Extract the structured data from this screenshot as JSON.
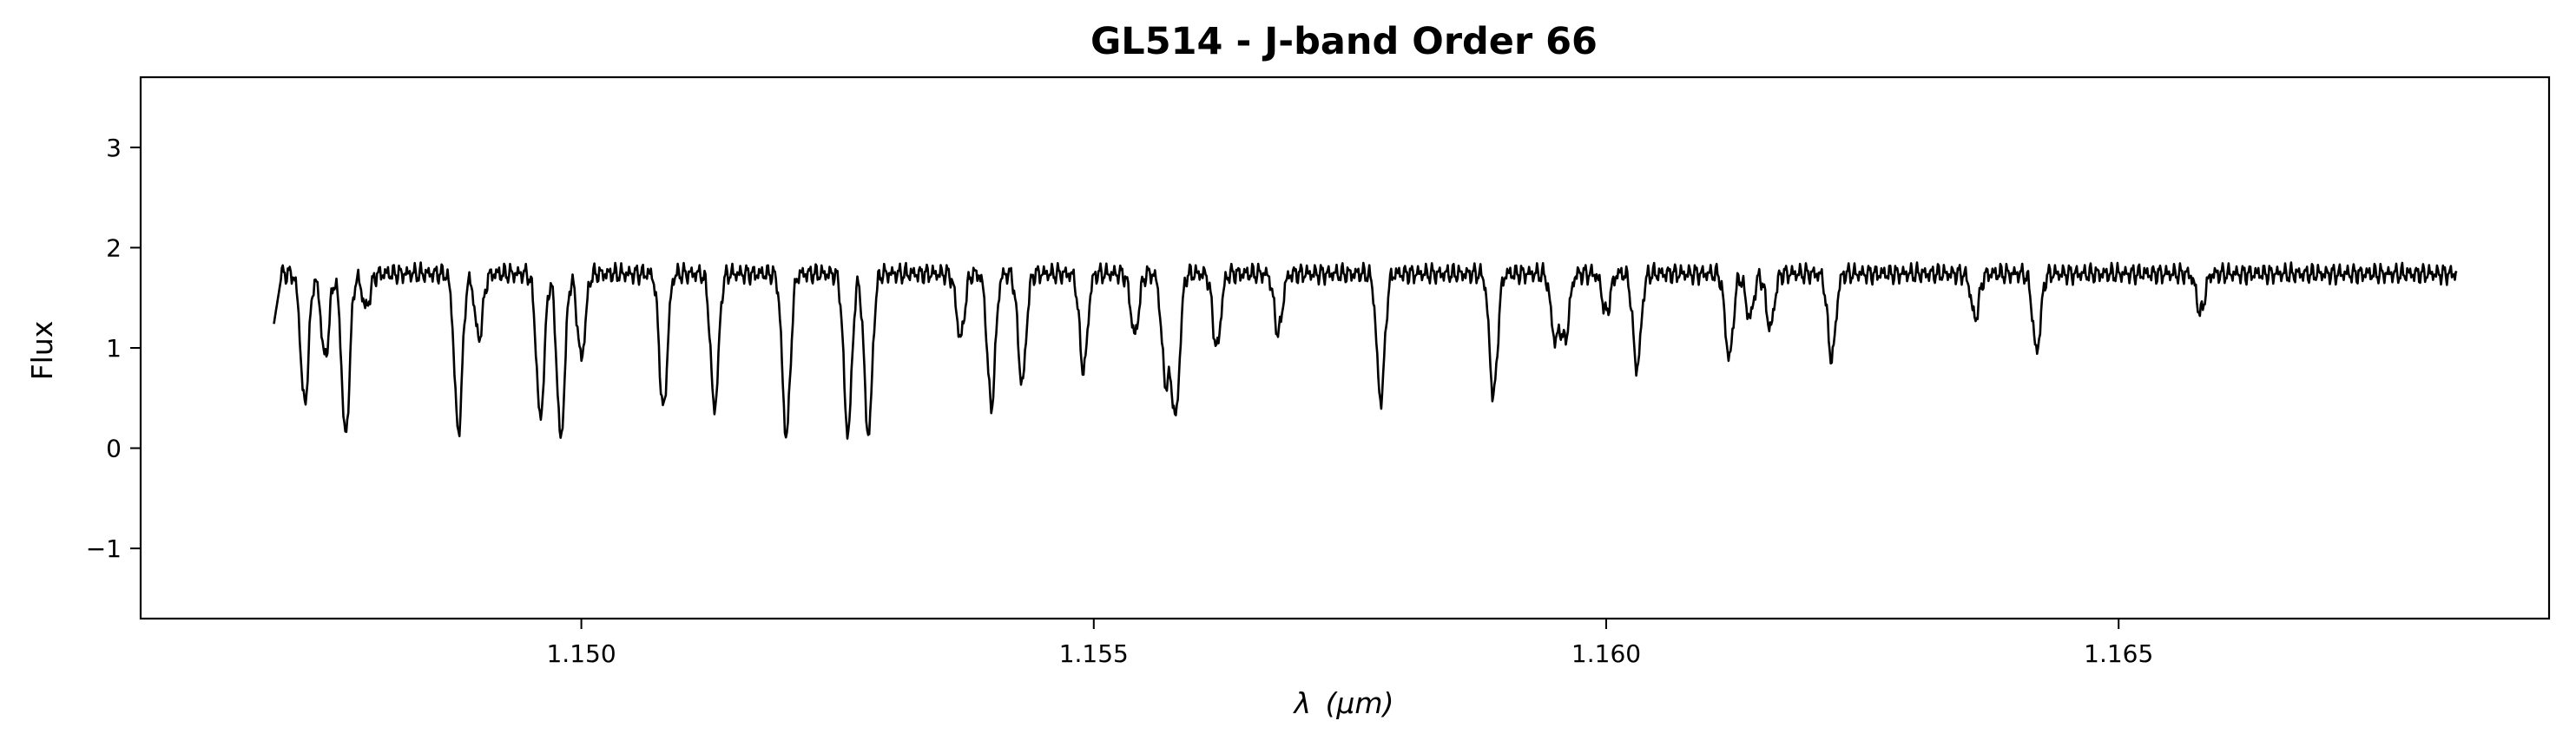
{
  "chart_data": {
    "type": "line",
    "title": "GL514 - J-band Order 66",
    "xlabel_symbol": "λ",
    "xlabel_unit": "(μm)",
    "ylabel": "Flux",
    "xlim": [
      1.1457,
      1.1692
    ],
    "ylim": [
      -1.7,
      3.7
    ],
    "xticks": [
      1.15,
      1.155,
      1.16,
      1.165
    ],
    "xtick_labels": [
      "1.150",
      "1.155",
      "1.160",
      "1.165"
    ],
    "yticks": [
      -1,
      0,
      1,
      2,
      3
    ],
    "ytick_labels": [
      "−1",
      "0",
      "1",
      "2",
      "3"
    ],
    "grid": false,
    "line_color": "#000000",
    "series": [
      {
        "x_range": [
          1.147,
          1.1683
        ],
        "continuum": 1.74,
        "absorption_lines": [
          [
            1.1473,
            0.44
          ],
          [
            1.1475,
            0.9
          ],
          [
            1.1477,
            0.12
          ],
          [
            1.1479,
            1.4
          ],
          [
            1.1488,
            0.17
          ],
          [
            1.149,
            1.1
          ],
          [
            1.1496,
            0.3
          ],
          [
            1.1498,
            0.1
          ],
          [
            1.15,
            0.9
          ],
          [
            1.1508,
            0.38
          ],
          [
            1.1513,
            0.4
          ],
          [
            1.152,
            0.13
          ],
          [
            1.1526,
            0.15
          ],
          [
            1.1528,
            0.14
          ],
          [
            1.1537,
            1.1
          ],
          [
            1.154,
            0.42
          ],
          [
            1.1543,
            0.65
          ],
          [
            1.1549,
            0.78
          ],
          [
            1.1554,
            1.13
          ],
          [
            1.1557,
            0.7
          ],
          [
            1.1558,
            0.35
          ],
          [
            1.1562,
            1.0
          ],
          [
            1.1568,
            1.15
          ],
          [
            1.1578,
            0.48
          ],
          [
            1.1589,
            0.52
          ],
          [
            1.1595,
            1.1
          ],
          [
            1.1596,
            1.1
          ],
          [
            1.16,
            1.35
          ],
          [
            1.1603,
            0.8
          ],
          [
            1.1612,
            0.9
          ],
          [
            1.1614,
            1.3
          ],
          [
            1.1616,
            1.2
          ],
          [
            1.1622,
            0.9
          ],
          [
            1.1636,
            1.3
          ],
          [
            1.1642,
            0.97
          ],
          [
            1.1658,
            1.35
          ]
        ]
      }
    ]
  }
}
